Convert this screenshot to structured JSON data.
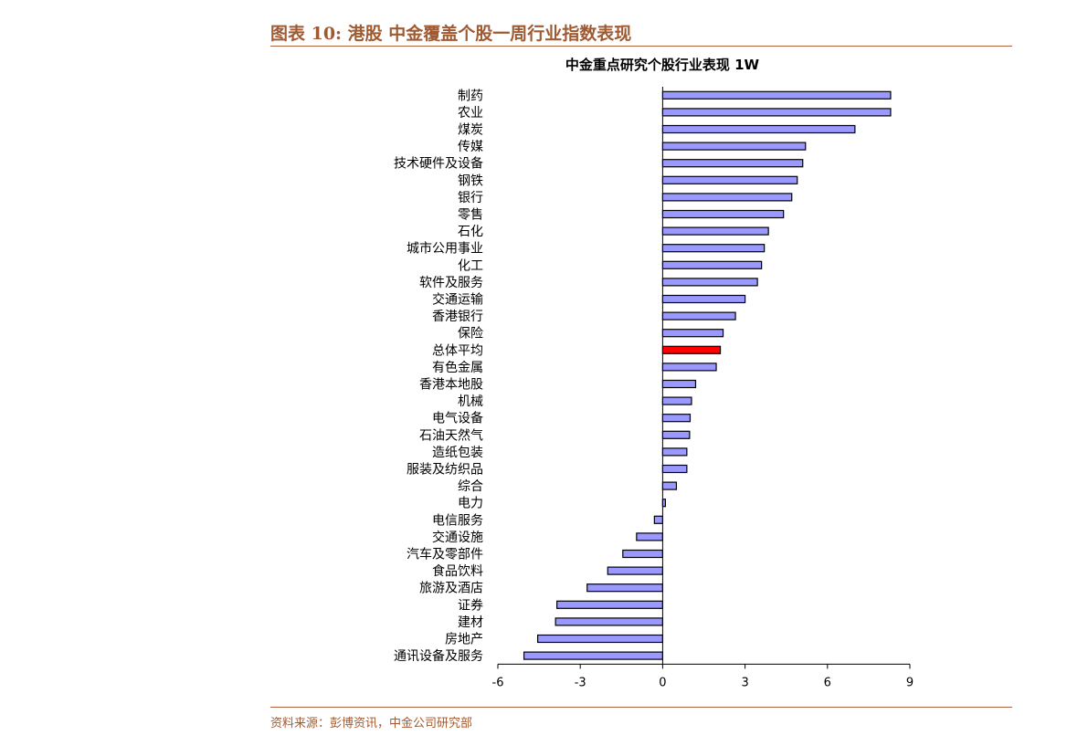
{
  "header": {
    "title": "图表 10:  港股 中金覆盖个股一周行业指数表现"
  },
  "footer": {
    "source": "资料来源：彭博资讯，中金公司研究部"
  },
  "colors": {
    "accent": "#a05a32",
    "bar": "#9999ff",
    "highlight": "#ff0000",
    "bar_border": "#000000"
  },
  "chart_data": {
    "type": "bar",
    "orientation": "horizontal",
    "title": "中金重点研究个股行业表现 1W",
    "xlabel": "",
    "ylabel": "",
    "xlim": [
      -6,
      9
    ],
    "xticks": [
      -6,
      -3,
      0,
      3,
      6,
      9
    ],
    "grid": false,
    "highlight_category": "总体平均",
    "categories": [
      "制药",
      "农业",
      "煤炭",
      "传媒",
      "技术硬件及设备",
      "钢铁",
      "银行",
      "零售",
      "石化",
      "城市公用事业",
      "化工",
      "软件及服务",
      "交通运输",
      "香港银行",
      "保险",
      "总体平均",
      "有色金属",
      "香港本地股",
      "机械",
      "电气设备",
      "石油天然气",
      "造纸包装",
      "服装及纺织品",
      "综合",
      "电力",
      "电信服务",
      "交通设施",
      "汽车及零部件",
      "食品饮料",
      "旅游及酒店",
      "证券",
      "建材",
      "房地产",
      "通讯设备及服务"
    ],
    "values": [
      8.3,
      8.3,
      7.0,
      5.2,
      5.1,
      4.9,
      4.7,
      4.4,
      3.85,
      3.7,
      3.6,
      3.45,
      3.0,
      2.65,
      2.2,
      2.1,
      1.95,
      1.2,
      1.05,
      1.0,
      0.98,
      0.88,
      0.88,
      0.5,
      0.1,
      -0.3,
      -0.95,
      -1.45,
      -2.0,
      -2.75,
      -3.85,
      -3.9,
      -4.55,
      -5.05
    ]
  }
}
